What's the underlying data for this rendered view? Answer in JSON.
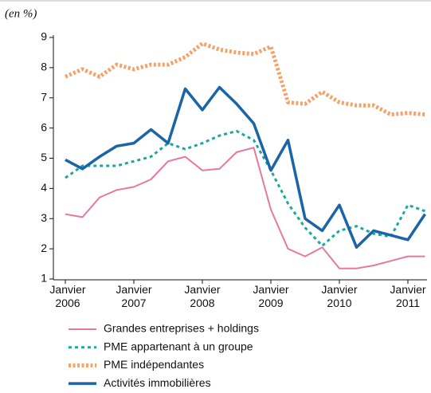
{
  "chart_data": {
    "type": "line",
    "unit_label": "(en %)",
    "categories": [
      "Janvier 2006",
      null,
      null,
      null,
      "Janvier 2007",
      null,
      null,
      null,
      "Janvier 2008",
      null,
      null,
      null,
      "Janvier 2009",
      null,
      null,
      null,
      "Janvier 2010",
      null,
      null,
      null,
      "Janvier 2011",
      null
    ],
    "ylim": [
      1,
      9
    ],
    "yticks": [
      1,
      2,
      3,
      4,
      5,
      6,
      7,
      8,
      9
    ],
    "series": [
      {
        "name": "Grandes entreprises + holdings",
        "color": "#e8789c",
        "style": "solid",
        "values": [
          3.15,
          3.05,
          3.7,
          3.95,
          4.05,
          4.3,
          4.9,
          5.05,
          4.6,
          4.65,
          5.2,
          5.35,
          3.3,
          2.0,
          1.75,
          2.05,
          1.35,
          1.35,
          1.45,
          1.6,
          1.75,
          1.75
        ]
      },
      {
        "name": "PME appartenant à un groupe",
        "color": "#1aa8a0",
        "style": "dotted",
        "values": [
          4.35,
          4.75,
          4.75,
          4.75,
          4.9,
          5.05,
          5.5,
          5.3,
          5.5,
          5.75,
          5.9,
          5.6,
          4.6,
          3.5,
          2.7,
          2.1,
          2.6,
          2.75,
          2.5,
          2.4,
          3.45,
          3.25
        ]
      },
      {
        "name": "PME indépendantes",
        "color": "#f4a26a",
        "style": "dashed",
        "values": [
          7.7,
          7.95,
          7.7,
          8.1,
          7.95,
          8.1,
          8.1,
          8.35,
          8.8,
          8.6,
          8.5,
          8.45,
          8.7,
          6.85,
          6.8,
          7.2,
          6.85,
          6.75,
          6.75,
          6.45,
          6.5,
          6.45
        ]
      },
      {
        "name": "Activités immobilières",
        "color": "#1c64a8",
        "style": "thick",
        "values": [
          4.95,
          4.65,
          5.05,
          5.4,
          5.5,
          5.95,
          5.5,
          7.3,
          6.6,
          7.35,
          6.8,
          6.15,
          4.6,
          5.6,
          3.0,
          2.6,
          3.45,
          2.05,
          2.6,
          2.45,
          2.3,
          3.15
        ]
      }
    ]
  }
}
